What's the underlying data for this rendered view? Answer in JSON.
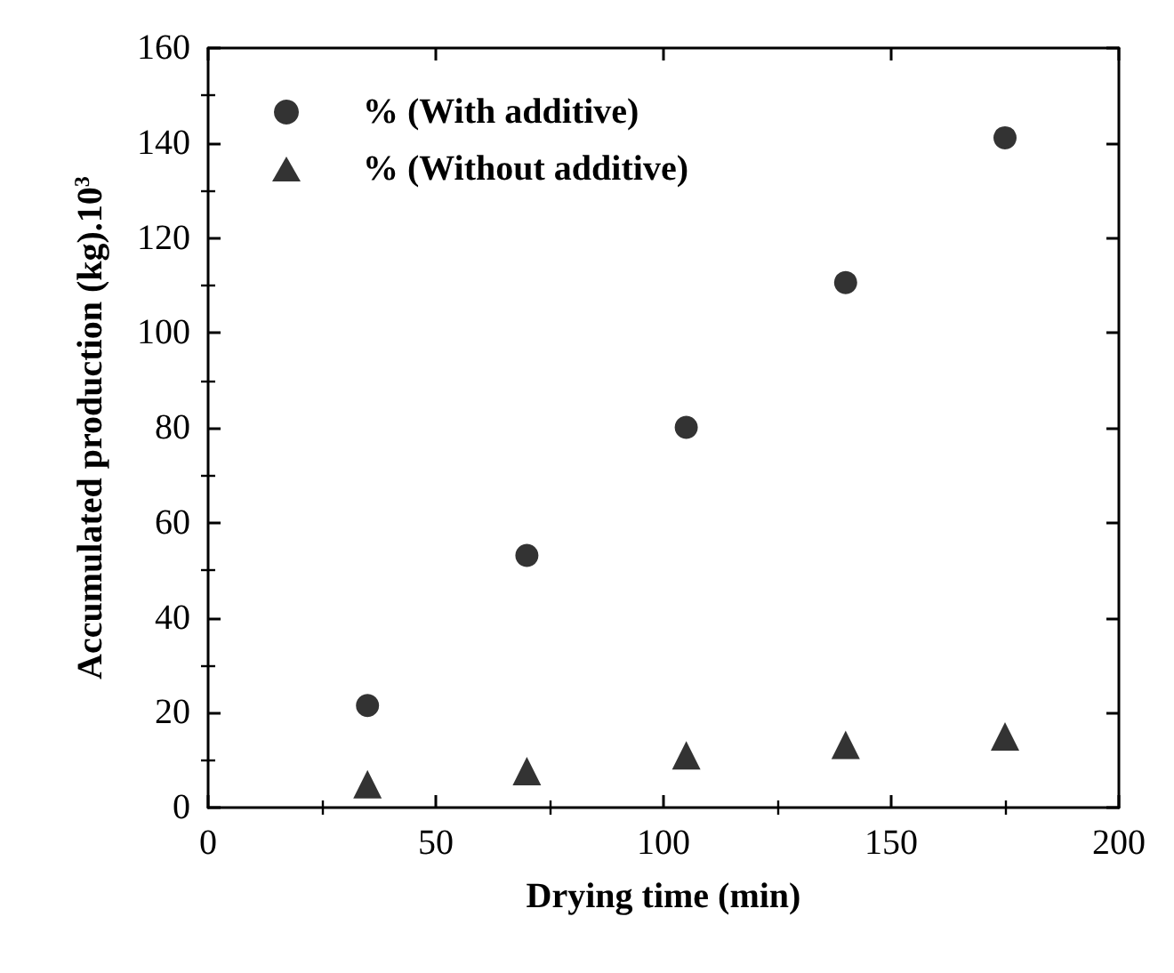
{
  "chart_data": {
    "type": "scatter",
    "xlabel": "Drying time (min)",
    "ylabel": "Accumulated production (kg).10$^{3}$",
    "x": [
      35,
      70,
      105,
      140,
      175
    ],
    "series": [
      {
        "name": "% (With additive)",
        "color": "#000000",
        "marker": "circle",
        "values": [
          21.5,
          53.1,
          80.1,
          110.6,
          141.1
        ]
      },
      {
        "name": "% (Without additive)",
        "color": "#000000",
        "marker": "triangle",
        "values": [
          4.9,
          7.7,
          11.0,
          13.2,
          15.0
        ]
      }
    ],
    "xlim": [
      0,
      200
    ],
    "xticks": [
      0,
      50,
      100,
      150,
      200
    ],
    "ylim": [
      0,
      160
    ],
    "yticks": [
      0,
      20,
      40,
      60,
      80,
      100,
      120,
      140,
      160
    ],
    "grid": false,
    "legend": "top left"
  }
}
